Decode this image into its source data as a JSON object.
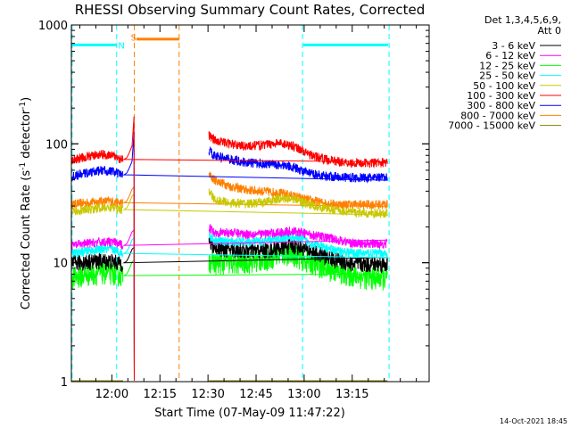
{
  "chart_data": {
    "type": "line",
    "title": "RHESSI Observing Summary Count Rates, Corrected",
    "xlabel": "Start Time (07-May-09 11:47:22)",
    "ylabel_main": "Corrected Count Rate (s",
    "ylabel_sup1": "-1",
    "ylabel_mid": " detector",
    "ylabel_sup2": "-1",
    "ylabel_end": ")",
    "yscale": "log",
    "ylim": [
      1,
      1000
    ],
    "xlim_minutes": [
      707.37,
      819
    ],
    "x_ticks": [
      {
        "label": "12:00",
        "minutes": 720
      },
      {
        "label": "12:15",
        "minutes": 735
      },
      {
        "label": "12:30",
        "minutes": 750
      },
      {
        "label": "12:45",
        "minutes": 765
      },
      {
        "label": "13:00",
        "minutes": 780
      },
      {
        "label": "13:15",
        "minutes": 795
      }
    ],
    "y_ticks": [
      {
        "label": "1",
        "value": 1
      },
      {
        "label": "10",
        "value": 10
      },
      {
        "label": "100",
        "value": 100
      },
      {
        "label": "1000",
        "value": 1000
      }
    ],
    "legend": {
      "placement": "top-right",
      "header_line1": "Det 1,3,4,5,6,9,",
      "header_line2": "Att 0"
    },
    "footer": "14-Oct-2021 18:45",
    "gap": {
      "start": 736,
      "end": 750
    },
    "series": [
      {
        "name": "3 - 6 keV",
        "color": "#000000",
        "x": [
          707.5,
          712,
          717,
          720,
          722,
          723.5,
          750.3,
          752,
          757,
          762,
          767,
          772,
          776,
          779,
          781,
          786,
          791,
          796,
          800,
          806
        ],
        "y": [
          10,
          10.2,
          10.4,
          10.3,
          10,
          10,
          15,
          13.5,
          13,
          12.7,
          12.6,
          13.3,
          14,
          13.5,
          12.8,
          11.5,
          10.4,
          9.7,
          9.8,
          9.8
        ]
      },
      {
        "name": "6 - 12 keV",
        "color": "#ff00ff",
        "x": [
          707.5,
          712,
          717,
          720,
          722,
          723.5,
          750.3,
          752,
          757,
          762,
          767,
          772,
          776,
          779,
          781,
          786,
          791,
          796,
          800,
          806
        ],
        "y": [
          14,
          14.5,
          15,
          15,
          14.5,
          14,
          20,
          18,
          18,
          17.5,
          17.5,
          18,
          18.5,
          18,
          17.5,
          16.5,
          15.5,
          14.5,
          14.5,
          14.5
        ]
      },
      {
        "name": "12 - 25 keV",
        "color": "#00ff00",
        "x": [
          707.5,
          712,
          717,
          720,
          722,
          723.5,
          750.3,
          752,
          757,
          762,
          767,
          772,
          776,
          779,
          781,
          786,
          791,
          796,
          800,
          806
        ],
        "y": [
          7.5,
          8,
          8.3,
          8.3,
          8,
          7.8,
          10.5,
          10,
          10,
          10.2,
          10.6,
          11.8,
          12,
          11,
          10.3,
          9.3,
          8.3,
          7.8,
          7.5,
          7.5
        ]
      },
      {
        "name": "25 - 50 keV",
        "color": "#00ffff",
        "x": [
          707.5,
          712,
          717,
          720,
          722,
          723.5,
          750.3,
          752,
          757,
          762,
          767,
          772,
          776,
          779,
          781,
          786,
          791,
          796,
          800,
          806
        ],
        "y": [
          12,
          12.5,
          13,
          13,
          12.5,
          12,
          17,
          15.5,
          15,
          15,
          15,
          16,
          16.5,
          16,
          15,
          13.5,
          12.5,
          12,
          12,
          12
        ]
      },
      {
        "name": "50 - 100 keV",
        "color": "#c8c800",
        "x": [
          707.5,
          712,
          717,
          720,
          722,
          723.5,
          750.3,
          752,
          757,
          762,
          767,
          772,
          776,
          779,
          781,
          786,
          791,
          796,
          800,
          806
        ],
        "y": [
          27,
          28,
          29,
          29,
          28.5,
          28,
          40,
          34,
          32,
          31.5,
          32,
          34.5,
          35,
          33,
          31,
          29,
          27.5,
          26.5,
          26,
          26
        ]
      },
      {
        "name": "100 - 300 keV",
        "color": "#ff0000",
        "x": [
          707.5,
          712,
          717,
          720,
          722,
          723.5,
          750.3,
          752,
          757,
          762,
          767,
          772,
          776,
          779,
          781,
          786,
          791,
          796,
          800,
          806
        ],
        "y": [
          73,
          78,
          82,
          80,
          76,
          74,
          118,
          108,
          100,
          96,
          98,
          102,
          98,
          90,
          82,
          75,
          71,
          69,
          69,
          70
        ]
      },
      {
        "name": "300 - 800 keV",
        "color": "#0000ff",
        "x": [
          707.5,
          712,
          717,
          720,
          722,
          723.5,
          750.3,
          752,
          757,
          762,
          767,
          772,
          776,
          779,
          781,
          786,
          791,
          796,
          800,
          806
        ],
        "y": [
          53,
          57,
          60,
          59,
          56,
          55,
          88,
          80,
          74,
          70,
          68,
          67,
          65,
          60,
          57,
          54,
          53,
          52,
          52,
          52
        ]
      },
      {
        "name": "800 - 7000 keV",
        "color": "#ff8000",
        "x": [
          707.5,
          712,
          717,
          720,
          722,
          723.5,
          750.3,
          752,
          757,
          762,
          767,
          772,
          776,
          779,
          781,
          786,
          791,
          796,
          800,
          806
        ],
        "y": [
          31,
          32,
          33,
          33,
          32,
          32,
          55,
          50,
          44,
          41,
          40,
          39,
          37,
          35,
          34,
          32,
          31,
          31,
          31,
          31
        ]
      },
      {
        "name": "7000 - 15000 keV",
        "color": "#808000",
        "x": [
          707.5,
          723.5,
          750.3,
          806
        ],
        "y": [
          0.5,
          0.5,
          0.5,
          0.5
        ]
      }
    ],
    "overlays": {
      "cyan_dashed_x": [
        707.6,
        721.5,
        779.5,
        806.5
      ],
      "orange_dashed_x": [
        727,
        741
      ],
      "cyan_bars": [
        {
          "x0": 707.7,
          "x1": 721.5,
          "y": 680
        },
        {
          "x0": 779.7,
          "x1": 806.2,
          "y": 680
        }
      ],
      "orange_bar": {
        "x0": 727.7,
        "x1": 741,
        "y": 760
      },
      "labels": [
        {
          "text": "N",
          "color": "#00ffff",
          "x": 723,
          "y": 680
        },
        {
          "text": "S",
          "color": "#ff8000",
          "x": 726.8,
          "y": 790
        }
      ]
    }
  }
}
